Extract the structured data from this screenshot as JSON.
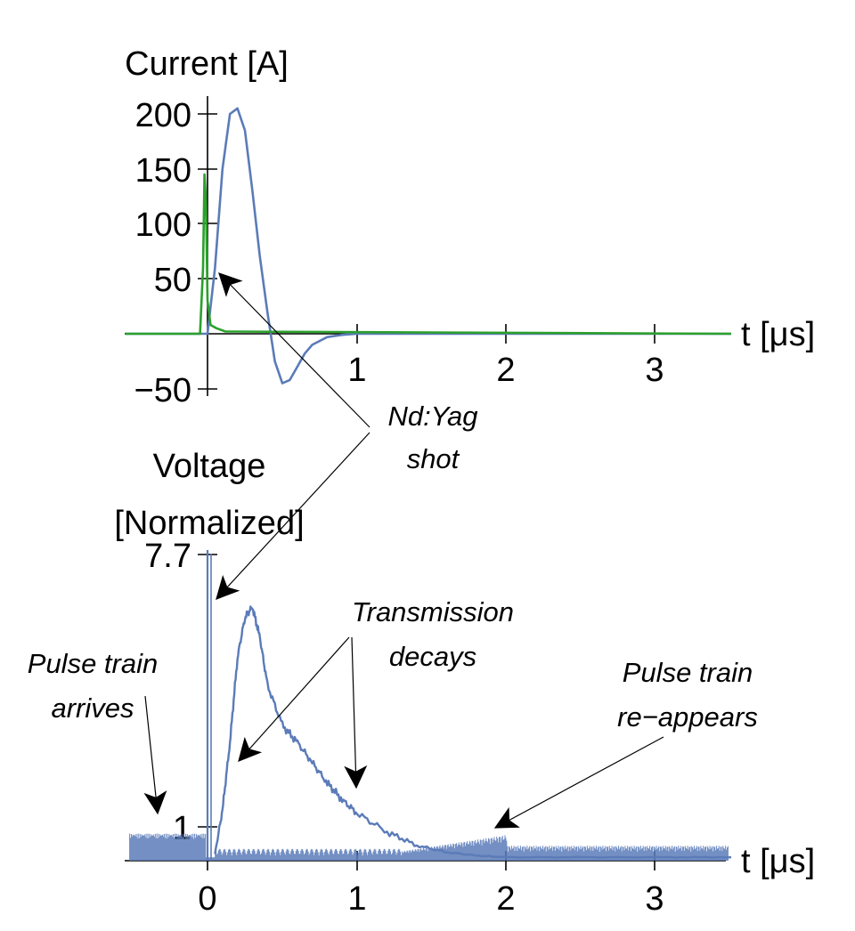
{
  "chart_data": [
    {
      "type": "line",
      "ylabel": "Current [A]",
      "xlabel": "t [μs]",
      "xlim": [
        -0.55,
        3.5
      ],
      "ylim": [
        -50,
        210
      ],
      "x_ticks": [
        "1",
        "2",
        "3"
      ],
      "y_ticks": [
        "200",
        "150",
        "100",
        "50",
        "−50"
      ],
      "series": [
        {
          "color": "#5b7bb8",
          "x": [
            -0.55,
            0.0,
            0.05,
            0.1,
            0.15,
            0.2,
            0.25,
            0.3,
            0.35,
            0.4,
            0.45,
            0.5,
            0.55,
            0.6,
            0.65,
            0.7,
            0.8,
            0.9,
            1.0,
            3.5
          ],
          "y": [
            0,
            0,
            60,
            150,
            200,
            205,
            185,
            130,
            70,
            20,
            -25,
            -45,
            -42,
            -30,
            -18,
            -10,
            -3,
            -1,
            0,
            0
          ]
        },
        {
          "color": "#2ca02c",
          "x": [
            -0.55,
            -0.05,
            -0.03,
            -0.02,
            -0.01,
            0.0,
            0.02,
            0.06,
            0.12,
            3.5
          ],
          "y": [
            0,
            0,
            60,
            145,
            120,
            30,
            8,
            5,
            2,
            0
          ]
        }
      ]
    },
    {
      "type": "line",
      "ylabel": "Voltage [Normalized]",
      "xlabel": "t [μs]",
      "xlim": [
        -0.55,
        3.5
      ],
      "ylim": [
        0,
        7.7
      ],
      "x_ticks": [
        "0",
        "1",
        "2",
        "3"
      ],
      "y_ticks": [
        "7.7",
        "1"
      ],
      "series": [
        {
          "color": "#5b7bb8",
          "x": [
            0.05,
            0.1,
            0.15,
            0.2,
            0.25,
            0.3,
            0.35,
            0.4,
            0.5,
            0.6,
            0.7,
            0.8,
            0.9,
            1.0,
            1.2,
            1.4,
            1.6,
            1.8,
            2.0,
            2.5,
            3.0,
            3.5
          ],
          "y": [
            0.2,
            1.5,
            3.5,
            6.0,
            7.2,
            7.5,
            6.6,
            5.2,
            4.0,
            3.5,
            2.9,
            2.3,
            1.8,
            1.4,
            0.85,
            0.45,
            0.25,
            0.15,
            0.1,
            0.1,
            0.1,
            0.1
          ]
        }
      ],
      "pulse_train": {
        "amplitude": 0.8,
        "color": "#5b7bb8"
      }
    }
  ],
  "annotations": {
    "ndyag_line1": "Nd:Yag",
    "ndyag_line2": "shot",
    "transmission_line1": "Transmission",
    "transmission_line2": "decays",
    "pulse_arrive_line1": "Pulse train",
    "pulse_arrive_line2": "arrives",
    "pulse_reappear_line1": "Pulse train",
    "pulse_reappear_line2": "re−appears"
  },
  "labels": {
    "top_ylabel": "Current [A]",
    "top_xlabel": "t [μs]",
    "bottom_ylabel_line1": "Voltage",
    "bottom_ylabel_line2": "[Normalized]",
    "bottom_xlabel": "t [μs]"
  }
}
